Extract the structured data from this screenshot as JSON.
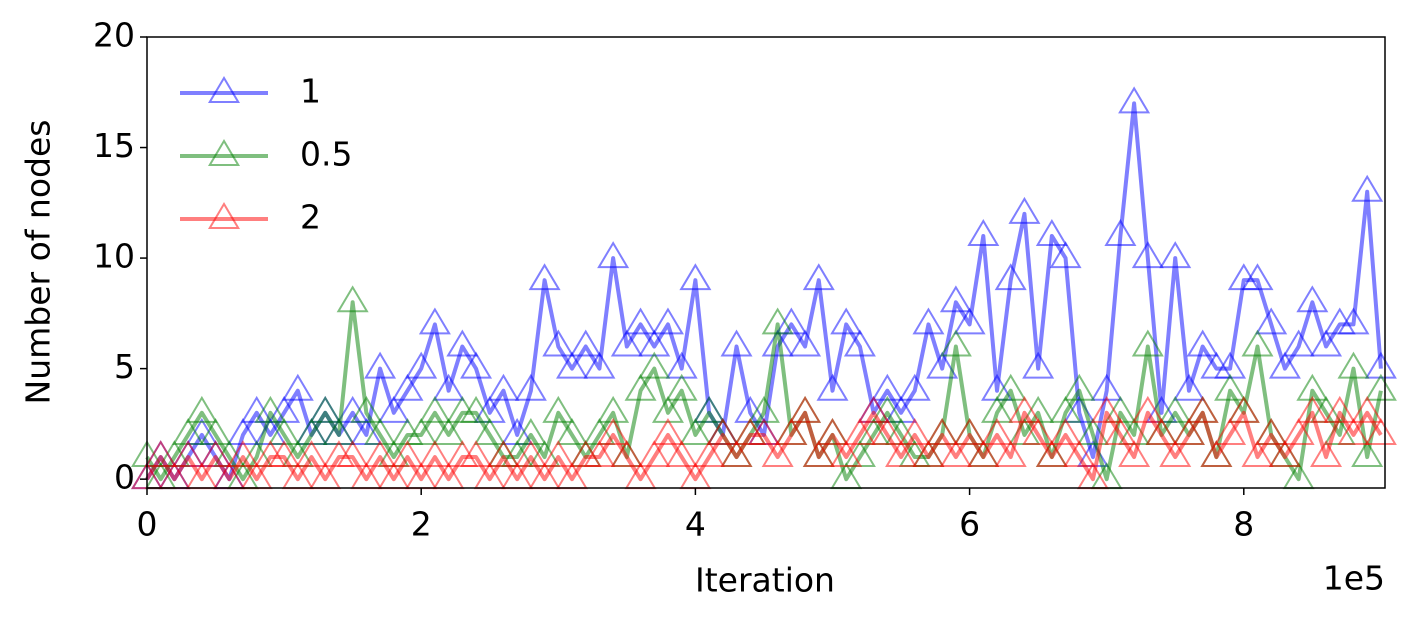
{
  "chart_data": {
    "type": "line",
    "xlabel": "Iteration",
    "ylabel": "Number of nodes",
    "x_offset_label": "1e5",
    "x": [
      0.0,
      0.1,
      0.2,
      0.3,
      0.4,
      0.5,
      0.6,
      0.7,
      0.8,
      0.9,
      1.0,
      1.1,
      1.2,
      1.3,
      1.4,
      1.5,
      1.6,
      1.7,
      1.8,
      1.9,
      2.0,
      2.1,
      2.2,
      2.3,
      2.4,
      2.5,
      2.6,
      2.7,
      2.8,
      2.9,
      3.0,
      3.1,
      3.2,
      3.3,
      3.4,
      3.5,
      3.6,
      3.7,
      3.8,
      3.9,
      4.0,
      4.1,
      4.2,
      4.3,
      4.4,
      4.5,
      4.6,
      4.7,
      4.8,
      4.9,
      5.0,
      5.1,
      5.2,
      5.3,
      5.4,
      5.5,
      5.6,
      5.7,
      5.8,
      5.9,
      6.0,
      6.1,
      6.2,
      6.3,
      6.4,
      6.5,
      6.6,
      6.7,
      6.8,
      6.9,
      7.0,
      7.1,
      7.2,
      7.3,
      7.4,
      7.5,
      7.6,
      7.7,
      7.8,
      7.9,
      8.0,
      8.1,
      8.2,
      8.3,
      8.4,
      8.5,
      8.6,
      8.7,
      8.8,
      8.9,
      9.0
    ],
    "series": [
      {
        "name": "1",
        "color": "#0000ff",
        "values": [
          0,
          1,
          0,
          1,
          2,
          1,
          0,
          2,
          3,
          2,
          3,
          4,
          2,
          3,
          2,
          3,
          2,
          5,
          3,
          4,
          5,
          7,
          4,
          6,
          5,
          3,
          4,
          2,
          4,
          9,
          6,
          5,
          6,
          5,
          10,
          6,
          7,
          6,
          7,
          5,
          9,
          3,
          2,
          6,
          3,
          2,
          6,
          7,
          6,
          9,
          4,
          7,
          6,
          3,
          4,
          3,
          4,
          7,
          5,
          8,
          7,
          11,
          4,
          9,
          12,
          5,
          11,
          10,
          3,
          1,
          4,
          11,
          17,
          10,
          3,
          10,
          4,
          6,
          5,
          5,
          9,
          9,
          7,
          5,
          6,
          8,
          6,
          7,
          7,
          13,
          5
        ]
      },
      {
        "name": "0.5",
        "color": "#008000",
        "values": [
          1,
          0,
          1,
          2,
          3,
          2,
          1,
          0,
          1,
          3,
          2,
          1,
          2,
          3,
          2,
          8,
          3,
          2,
          1,
          2,
          2,
          3,
          2,
          3,
          3,
          2,
          1,
          1,
          2,
          1,
          3,
          2,
          1,
          2,
          3,
          1,
          4,
          5,
          3,
          4,
          2,
          3,
          2,
          1,
          2,
          3,
          7,
          2,
          3,
          1,
          2,
          0,
          1,
          2,
          3,
          2,
          1,
          1,
          2,
          6,
          2,
          1,
          3,
          4,
          2,
          3,
          1,
          3,
          4,
          2,
          0,
          3,
          2,
          6,
          2,
          3,
          2,
          3,
          1,
          4,
          3,
          6,
          2,
          1,
          0,
          4,
          3,
          2,
          5,
          1,
          4
        ]
      },
      {
        "name": "2",
        "color": "#ff0000",
        "values": [
          0,
          1,
          0,
          1,
          0,
          1,
          0,
          1,
          0,
          1,
          1,
          0,
          1,
          0,
          1,
          1,
          0,
          1,
          0,
          1,
          0,
          1,
          0,
          1,
          1,
          0,
          1,
          0,
          1,
          0,
          1,
          0,
          1,
          1,
          2,
          1,
          0,
          1,
          2,
          1,
          0,
          1,
          2,
          1,
          2,
          2,
          1,
          2,
          3,
          1,
          2,
          1,
          2,
          3,
          2,
          1,
          2,
          1,
          2,
          1,
          2,
          1,
          2,
          1,
          3,
          2,
          1,
          2,
          1,
          0,
          3,
          2,
          1,
          3,
          2,
          1,
          2,
          3,
          1,
          2,
          3,
          1,
          2,
          1,
          2,
          3,
          1,
          3,
          2,
          3,
          2
        ]
      }
    ],
    "xlim": [
      0,
      9.03
    ],
    "ylim": [
      -0.4,
      20
    ],
    "xticks": [
      0,
      2,
      4,
      6,
      8
    ],
    "yticks": [
      0,
      5,
      10,
      15,
      20
    ],
    "legend": "upper left",
    "line_alpha": 0.5,
    "marker": "triangle"
  }
}
